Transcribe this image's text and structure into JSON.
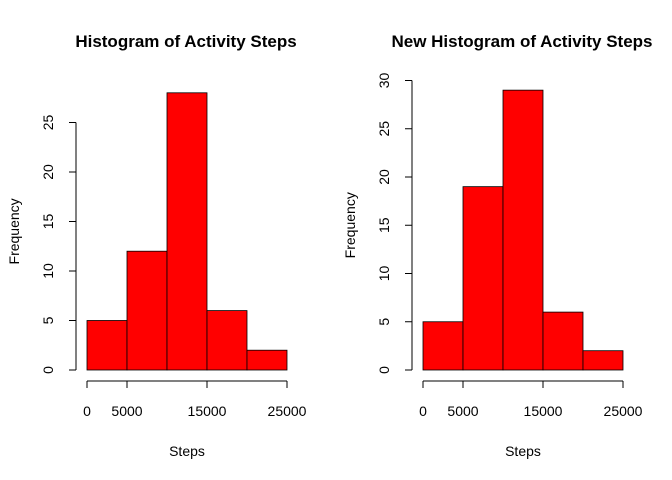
{
  "chart_data": [
    {
      "type": "bar",
      "title": "Histogram of Activity Steps",
      "xlabel": "Steps",
      "ylabel": "Frequency",
      "bins": [
        [
          0,
          5000
        ],
        [
          5000,
          10000
        ],
        [
          10000,
          15000
        ],
        [
          15000,
          20000
        ],
        [
          20000,
          25000
        ]
      ],
      "values": [
        5,
        12,
        28,
        6,
        2
      ],
      "xlim": [
        0,
        25000
      ],
      "ylim": [
        0,
        28
      ],
      "xticks": [
        0,
        5000,
        15000,
        25000
      ],
      "xtick_labels": [
        "0",
        "5000",
        "15000",
        "25000"
      ],
      "yticks": [
        0,
        5,
        10,
        15,
        20,
        25
      ],
      "ytick_labels": [
        "0",
        "5",
        "10",
        "15",
        "20",
        "25"
      ],
      "bar_color": "#ff0000",
      "grid": false
    },
    {
      "type": "bar",
      "title": "New Histogram of Activity Steps",
      "xlabel": "Steps",
      "ylabel": "Frequency",
      "bins": [
        [
          0,
          5000
        ],
        [
          5000,
          10000
        ],
        [
          10000,
          15000
        ],
        [
          15000,
          20000
        ],
        [
          20000,
          25000
        ]
      ],
      "values": [
        5,
        19,
        29,
        6,
        2
      ],
      "xlim": [
        0,
        25000
      ],
      "ylim": [
        0,
        30
      ],
      "xticks": [
        0,
        5000,
        15000,
        25000
      ],
      "xtick_labels": [
        "0",
        "5000",
        "15000",
        "25000"
      ],
      "yticks": [
        0,
        5,
        10,
        15,
        20,
        25,
        30
      ],
      "ytick_labels": [
        "0",
        "5",
        "10",
        "15",
        "20",
        "25",
        "30"
      ],
      "bar_color": "#ff0000",
      "grid": false
    }
  ]
}
